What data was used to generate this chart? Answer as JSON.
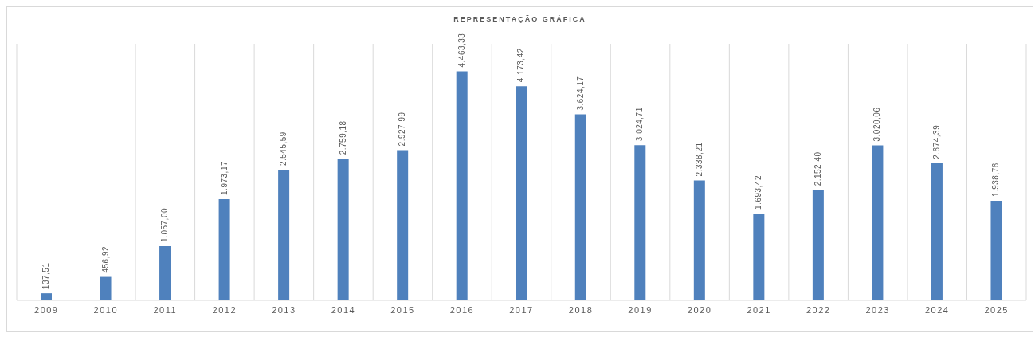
{
  "chart_data": {
    "type": "bar",
    "title": "REPRESENTAÇÃO GRÁFICA",
    "categories": [
      "2009",
      "2010",
      "2011",
      "2012",
      "2013",
      "2014",
      "2015",
      "2016",
      "2017",
      "2018",
      "2019",
      "2020",
      "2021",
      "2022",
      "2023",
      "2024",
      "2025"
    ],
    "values": [
      137.51,
      456.92,
      1057.0,
      1973.17,
      2545.59,
      2759.18,
      2927.99,
      4463.33,
      4173.42,
      3624.17,
      3024.71,
      2338.21,
      1693.42,
      2152.4,
      3020.06,
      2674.39,
      1938.76
    ],
    "value_labels": [
      "137,51",
      "456,92",
      "1.057,00",
      "1.973,17",
      "2.545,59",
      "2.759,18",
      "2.927,99",
      "4.463,33",
      "4.173,42",
      "3.624,17",
      "3.024,71",
      "2.338,21",
      "1.693,42",
      "2.152,40",
      "3.020,06",
      "2.674,39",
      "1.938,76"
    ],
    "color": "#4f81bd",
    "grid": "x"
  }
}
